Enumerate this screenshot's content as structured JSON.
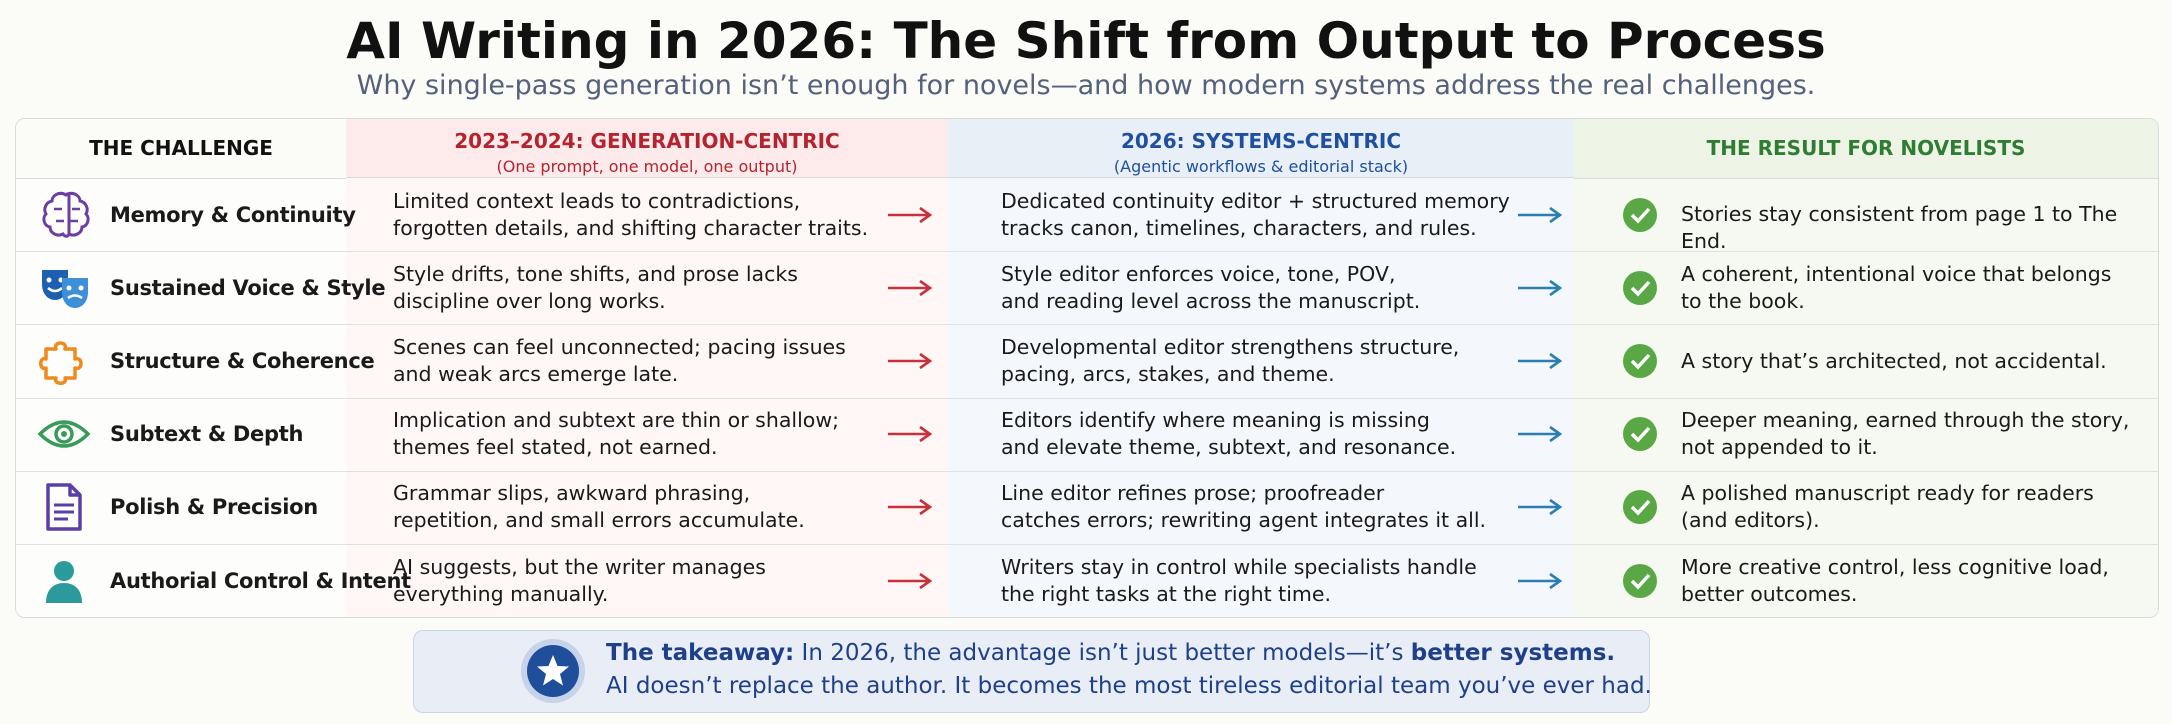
{
  "header": {
    "title": "AI Writing in 2026: The Shift from Output to Process",
    "subtitle": "Why single-pass generation isn’t enough for novels—and how modern systems address the real challenges."
  },
  "table": {
    "columns": [
      {
        "title": "THE CHALLENGE"
      },
      {
        "title": "2023–2024: GENERATION-CENTRIC",
        "subtitle": "(One prompt, one model, one output)"
      },
      {
        "title": "2026: SYSTEMS-CENTRIC",
        "subtitle": "(Agentic workflows & editorial stack)"
      },
      {
        "title": "THE RESULT FOR NOVELISTS"
      }
    ],
    "rows": [
      {
        "challenge": "Memory & Continuity",
        "before": [
          "Limited context leads to contradictions,",
          "forgotten details, and shifting character traits."
        ],
        "after": [
          "Dedicated continuity editor + structured memory",
          "tracks canon, timelines, characters, and rules."
        ],
        "result": [
          "Stories stay consistent from page 1 to The End."
        ]
      },
      {
        "challenge": "Sustained Voice & Style",
        "before": [
          "Style drifts, tone shifts, and prose lacks",
          "discipline over long works."
        ],
        "after": [
          "Style editor enforces voice, tone, POV,",
          "and reading level across the manuscript."
        ],
        "result": [
          "A coherent, intentional voice that belongs",
          "to the book."
        ]
      },
      {
        "challenge": "Structure & Coherence",
        "before": [
          "Scenes can feel unconnected; pacing issues",
          "and weak arcs emerge late."
        ],
        "after": [
          "Developmental editor strengthens structure,",
          "pacing, arcs, stakes, and theme."
        ],
        "result": [
          "A story that’s architected, not accidental."
        ]
      },
      {
        "challenge": "Subtext & Depth",
        "before": [
          "Implication and subtext are thin or shallow;",
          "themes feel stated, not earned."
        ],
        "after": [
          "Editors identify where meaning is missing",
          "and elevate theme, subtext, and resonance."
        ],
        "result": [
          "Deeper meaning, earned through the story,",
          "not appended to it."
        ]
      },
      {
        "challenge": "Polish & Precision",
        "before": [
          "Grammar slips, awkward phrasing,",
          "repetition, and small errors accumulate."
        ],
        "after": [
          "Line editor refines prose; proofreader",
          "catches errors; rewriting agent integrates it all."
        ],
        "result": [
          "A polished manuscript ready for readers",
          "(and editors)."
        ]
      },
      {
        "challenge": "Authorial Control & Intent",
        "before": [
          "AI suggests, but the writer manages",
          "everything manually."
        ],
        "after": [
          "Writers stay in control while specialists handle",
          "the right tasks at the right time."
        ],
        "result": [
          "More creative control, less cognitive load,",
          "better outcomes."
        ]
      }
    ]
  },
  "takeaway": {
    "lead": "The takeaway:",
    "text": " In 2026, the advantage isn’t just better models—it’s ",
    "emphasis": "better systems.",
    "line2": "AI doesn’t replace the author. It becomes the most tireless editorial team you’ve ever had."
  }
}
